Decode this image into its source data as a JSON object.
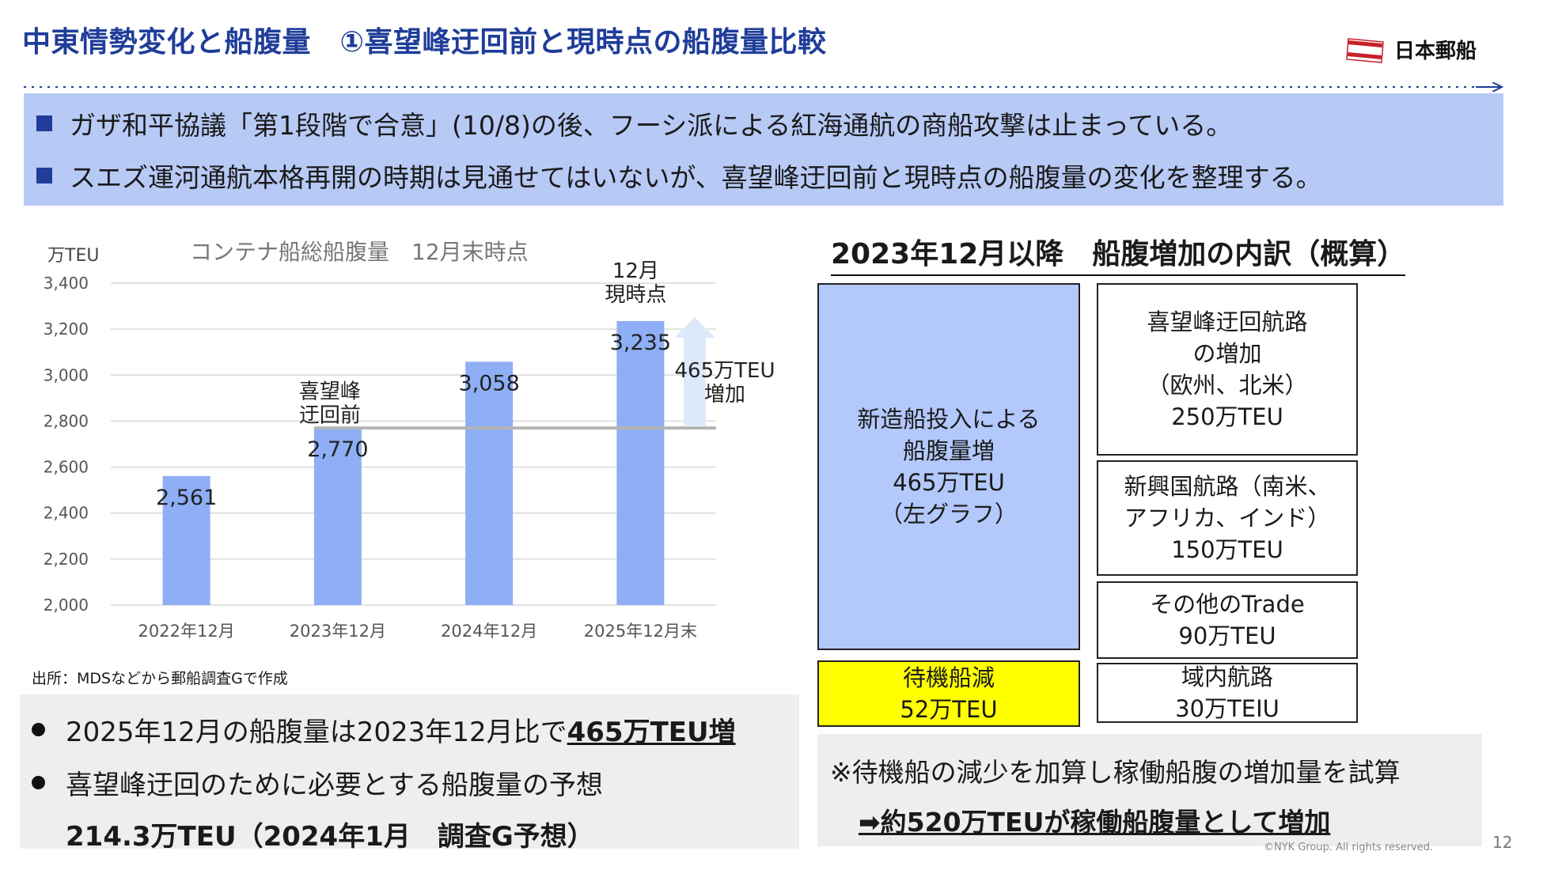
{
  "header": {
    "title": "中東情勢変化と船腹量　①喜望峰迂回前と現時点の船腹量比較",
    "logo_text": "日本郵船"
  },
  "banner": {
    "bullets": [
      "ガザ和平協議「第1段階で合意」(10/8)の後、フーシ派による紅海通航の商船攻撃は止まっている。",
      "スエズ運河通航本格再開の時期は見通せてはいないが、喜望峰迂回前と現時点の船腹量の変化を整理する。"
    ]
  },
  "chart_data": {
    "type": "bar",
    "title": "コンテナ船総船腹量　12月末時点",
    "ylabel": "万TEU",
    "categories": [
      "2022年12月",
      "2023年12月",
      "2024年12月",
      "2025年12月末"
    ],
    "values": [
      2561,
      2770,
      3058,
      3235
    ],
    "value_labels": [
      "2,561",
      "2,770",
      "3,058",
      "3,235"
    ],
    "ylim": [
      2000,
      3400
    ],
    "yticks": [
      "2,000",
      "2,200",
      "2,400",
      "2,600",
      "2,800",
      "3,000",
      "3,200",
      "3,400"
    ],
    "bar_color": "#8eaef5",
    "reference_line": 2770,
    "annotations": {
      "before_cape": [
        "喜望峰",
        "迂回前"
      ],
      "current": [
        "12月",
        "現時点"
      ],
      "increase": [
        "465万TEU",
        "増加"
      ]
    },
    "grid": true
  },
  "source": "出所：MDSなどから郵船調査Gで作成",
  "left_summary": {
    "line1_prefix": "2025年12月の船腹量は2023年12月比で",
    "line1_emph": "465万TEU増",
    "line2": "喜望峰迂回のために必要とする船腹量の予想",
    "line3": "214.3万TEU（2024年1月　調査G予想）"
  },
  "breakdown": {
    "title": "2023年12月以降　船腹増加の内訳（概算）",
    "newbuild": {
      "l1": "新造船投入による",
      "l2": "船腹量増",
      "l3": "465万TEU",
      "l4": "（左グラフ）",
      "color": "#b3c8fb"
    },
    "idle": {
      "l1": "待機船減",
      "l2": "52万TEU",
      "color": "#ffff00"
    },
    "cape": {
      "l1": "喜望峰迂回航路",
      "l2": "の増加",
      "l3": "（欧州、北米）",
      "l4": "250万TEU"
    },
    "emerging": {
      "l1": "新興国航路（南米、",
      "l2": "アフリカ、インド）",
      "l3": "150万TEU"
    },
    "other": {
      "l1": "その他のTrade",
      "l2": "90万TEU"
    },
    "intra": {
      "l1": "域内航路",
      "l2": "30万TEIU"
    }
  },
  "note": {
    "line1": "※待機船の減少を加算し稼働船腹の増加量を試算",
    "line2": "➡約520万TEUが稼働船腹量として増加"
  },
  "footer": {
    "page": "12",
    "copyright": "©NYK Group. All rights reserved."
  }
}
